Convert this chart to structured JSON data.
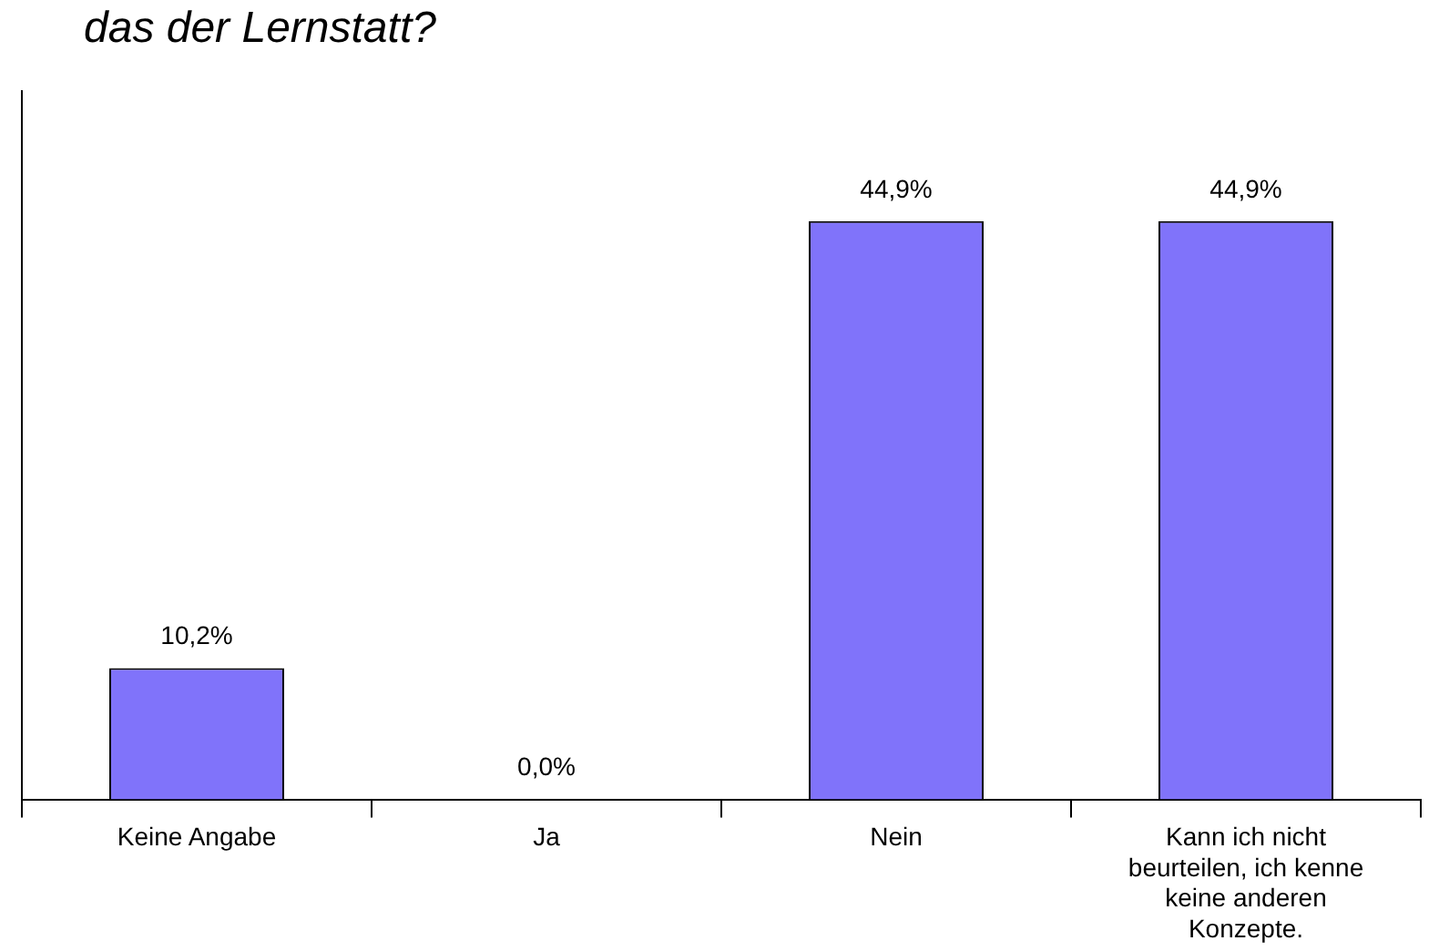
{
  "chart_data": {
    "type": "bar",
    "title": "das der Lernstatt?",
    "categories": [
      "Keine Angabe",
      "Ja",
      "Nein",
      "Kann ich nicht beurteilen, ich kenne keine anderen Konzepte."
    ],
    "values": [
      10.2,
      0.0,
      44.9,
      44.9
    ],
    "value_labels": [
      "10,2%",
      "0,0%",
      "44,9%",
      "44,9%"
    ],
    "color": "#8073fa",
    "ylim": [
      0,
      55
    ],
    "tick_labels": "x",
    "grid": false,
    "legend": false
  }
}
